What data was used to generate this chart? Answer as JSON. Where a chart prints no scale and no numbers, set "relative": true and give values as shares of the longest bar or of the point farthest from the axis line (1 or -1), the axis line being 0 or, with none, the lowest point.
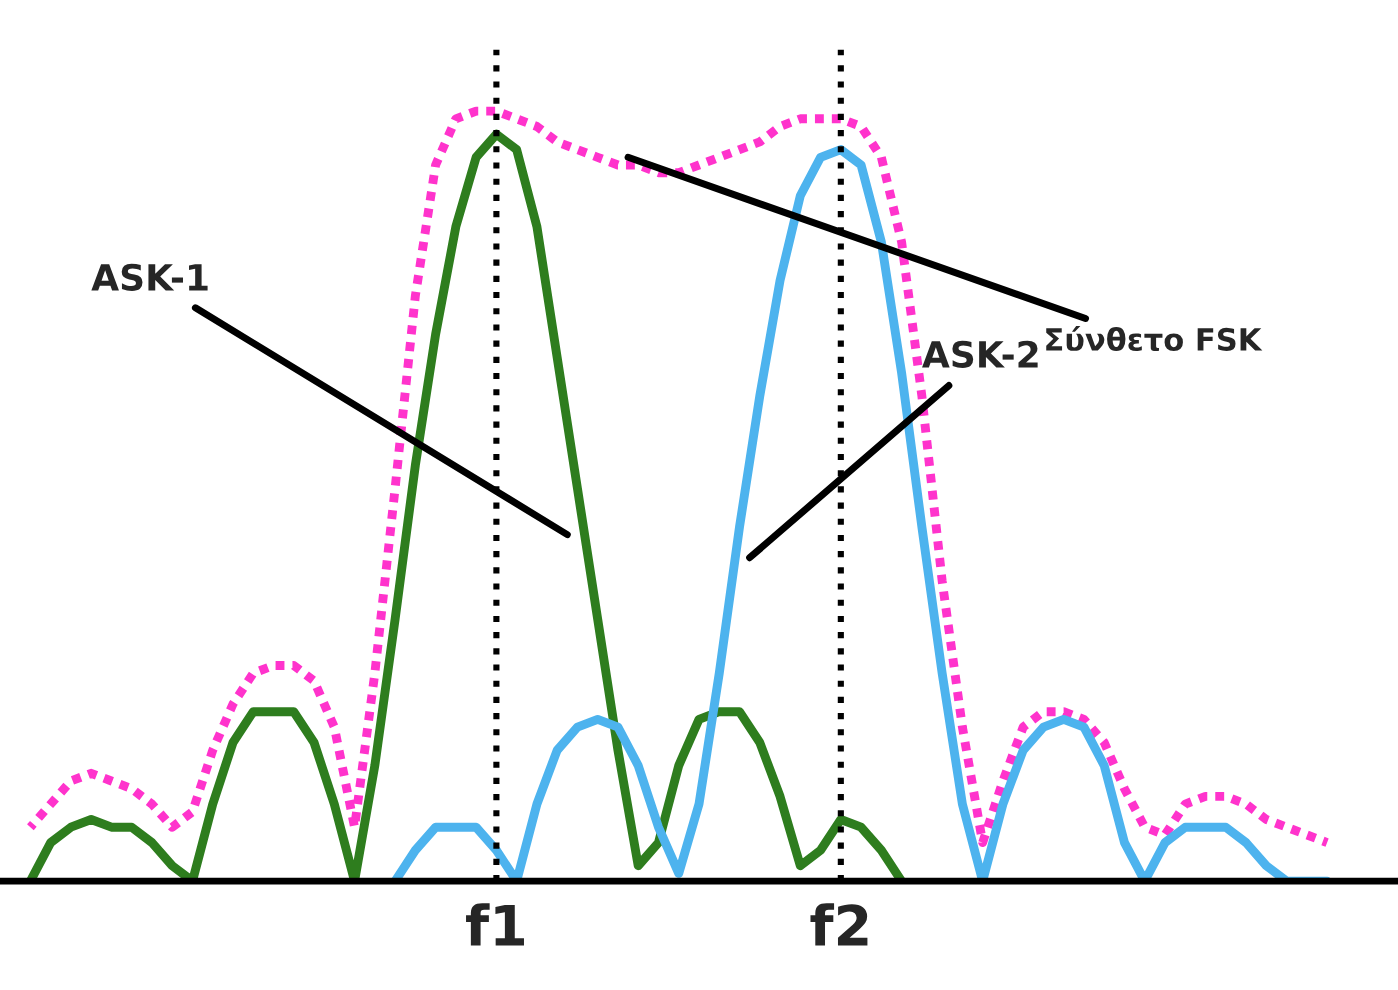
{
  "chart_data": {
    "type": "line",
    "relative": true,
    "grid": false,
    "legend": false,
    "marker": "none",
    "categories": [
      null,
      null,
      null,
      null,
      null,
      null,
      null,
      null,
      null,
      null,
      null,
      null,
      null,
      null,
      null,
      null,
      null,
      null,
      null,
      null,
      null,
      null,
      null,
      "f1",
      null,
      null,
      null,
      null,
      null,
      null,
      null,
      null,
      null,
      null,
      null,
      null,
      null,
      null,
      null,
      null,
      "f2",
      null,
      null,
      null,
      null,
      null,
      null,
      null,
      null,
      null,
      null,
      null,
      null,
      null,
      null,
      null,
      null,
      null,
      null,
      null,
      null,
      null,
      null,
      null,
      null
    ],
    "series": [
      {
        "color": "#ff33cc",
        "line_style": "dotted",
        "values": [
          0.07,
          0.1,
          0.13,
          0.14,
          0.13,
          0.12,
          0.1,
          0.07,
          0.09,
          0.17,
          0.23,
          0.27,
          0.28,
          0.28,
          0.26,
          0.2,
          0.07,
          0.27,
          0.51,
          0.76,
          0.93,
          0.99,
          1,
          1,
          0.99,
          0.98,
          0.96,
          0.95,
          0.94,
          0.93,
          0.93,
          0.92,
          0.92,
          0.93,
          0.94,
          0.95,
          0.96,
          0.98,
          0.99,
          0.99,
          0.99,
          0.98,
          0.94,
          0.83,
          0.63,
          0.39,
          0.2,
          0.05,
          0.13,
          0.2,
          0.22,
          0.22,
          0.21,
          0.18,
          0.12,
          0.07,
          0.06,
          0.1,
          0.11,
          0.11,
          0.1,
          0.08,
          0.07,
          0.06,
          0.05
        ]
      },
      {
        "color": "#2e7d1e",
        "line_style": "solid",
        "values": [
          0,
          0.05,
          0.07,
          0.08,
          0.07,
          0.07,
          0.05,
          0.02,
          0,
          0.1,
          0.18,
          0.22,
          0.22,
          0.22,
          0.18,
          0.1,
          0,
          0.15,
          0.34,
          0.54,
          0.71,
          0.85,
          0.94,
          0.97,
          0.95,
          0.85,
          0.68,
          0.51,
          0.34,
          0.17,
          0.02,
          0.05,
          0.15,
          0.21,
          0.22,
          0.22,
          0.18,
          0.11,
          0.02,
          0.04,
          0.08,
          0.07,
          0.04,
          0,
          null,
          null,
          null,
          null,
          null,
          null,
          null,
          null,
          null,
          null,
          null,
          null,
          null,
          null,
          null,
          null,
          null,
          null,
          null,
          null,
          null
        ]
      },
      {
        "color": "#4db3ee",
        "line_style": "solid",
        "values": [
          null,
          null,
          null,
          null,
          null,
          null,
          null,
          null,
          null,
          null,
          null,
          null,
          null,
          null,
          null,
          null,
          null,
          null,
          0,
          0.04,
          0.07,
          0.07,
          0.07,
          0.04,
          0,
          0.1,
          0.17,
          0.2,
          0.21,
          0.2,
          0.15,
          0.07,
          0.01,
          0.1,
          0.27,
          0.46,
          0.63,
          0.78,
          0.89,
          0.94,
          0.95,
          0.93,
          0.83,
          0.66,
          0.46,
          0.27,
          0.1,
          0,
          0.1,
          0.17,
          0.2,
          0.21,
          0.2,
          0.15,
          0.05,
          0,
          0.05,
          0.07,
          0.07,
          0.07,
          0.05,
          0.02,
          0,
          0,
          0
        ]
      }
    ],
    "ref_lines": [
      {
        "axis": "x",
        "value": "f1",
        "color": "#000000",
        "line_style": "dotted"
      },
      {
        "axis": "x",
        "value": "f2",
        "color": "#000000",
        "line_style": "dotted"
      }
    ],
    "annotations": [
      "Σύνθετο FSK",
      "ASK-1",
      "ASK-2"
    ]
  }
}
